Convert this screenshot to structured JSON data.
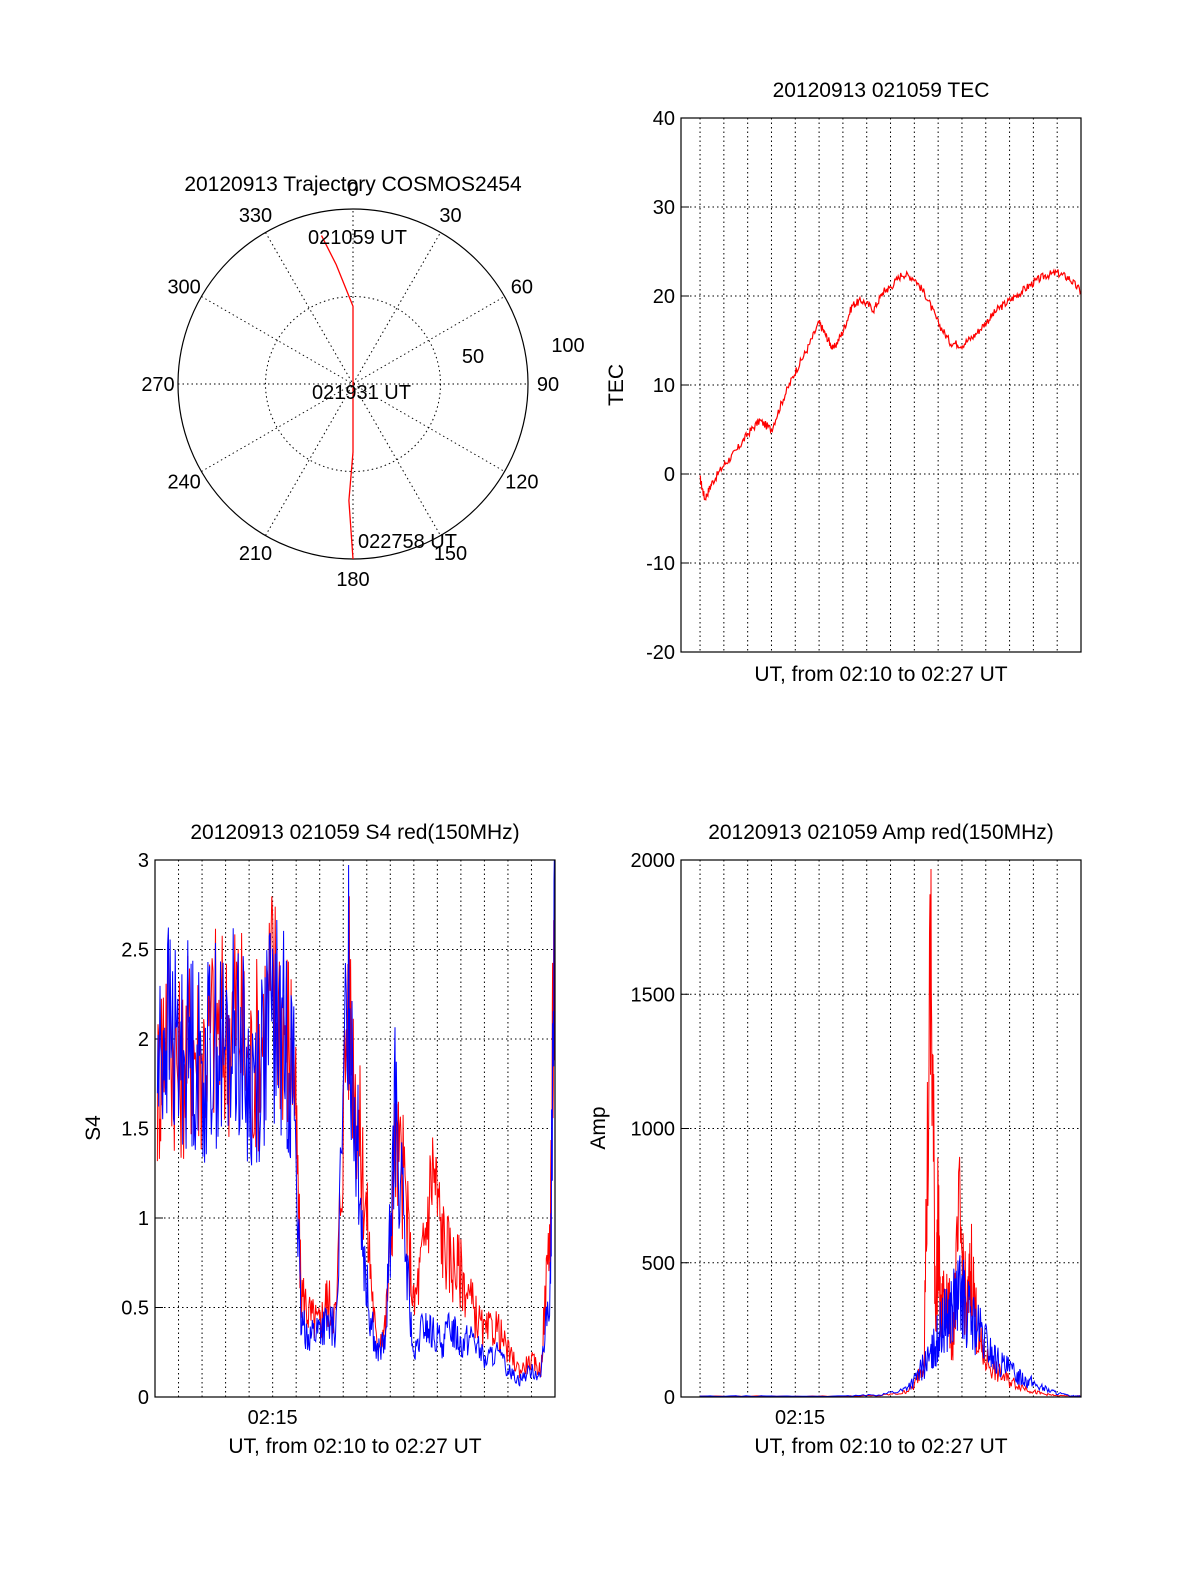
{
  "colors": {
    "red": "#ff0000",
    "blue": "#0000ff",
    "axis": "#000000",
    "background": "#ffffff"
  },
  "chart_data": [
    {
      "id": "polar",
      "type": "polar",
      "title": "20120913 Trajectory COSMOS2454",
      "angle_labels": [
        "0",
        "30",
        "60",
        "90",
        "120",
        "150",
        "180",
        "210",
        "240",
        "270",
        "300",
        "330"
      ],
      "radial_labels": [
        "50",
        "100"
      ],
      "grid": true,
      "series": [
        {
          "color": "red",
          "points": [
            {
              "az": 348,
              "el": 12
            },
            {
              "az": 352,
              "el": 28
            },
            {
              "az": 0,
              "el": 50
            },
            {
              "az": 20,
              "el": 90
            },
            {
              "az": 180,
              "el": 55
            },
            {
              "az": 182,
              "el": 30
            },
            {
              "az": 180,
              "el": 0
            }
          ]
        }
      ],
      "annotations": [
        "021059 UT",
        "021931 UT",
        "022758 UT"
      ]
    },
    {
      "id": "tec",
      "type": "line",
      "title": "20120913 021059 TEC",
      "xlabel": "UT, from 02:10 to 02:27 UT",
      "ylabel": "TEC",
      "xlim": [
        2.2,
        19.0
      ],
      "ylim": [
        -20,
        40
      ],
      "yticks": [
        "-20",
        "-10",
        "0",
        "10",
        "20",
        "30",
        "40"
      ],
      "grid": true,
      "series": [
        {
          "color": "red",
          "x": [
            3.0,
            3.2,
            3.5,
            4.0,
            4.5,
            5.0,
            5.5,
            6.0,
            6.5,
            7.0,
            7.5,
            8.0,
            8.3,
            8.6,
            9.0,
            9.4,
            9.8,
            10.3,
            10.7,
            11.0,
            11.5,
            12.0,
            12.5,
            13.0,
            13.5,
            14.0,
            14.5,
            15.0,
            15.5,
            16.0,
            16.5,
            17.0,
            17.5,
            18.0,
            18.5,
            19.0
          ],
          "y": [
            -0.5,
            -2.8,
            -1.0,
            1.0,
            2.5,
            4.5,
            6.0,
            5.0,
            8.5,
            11.5,
            14.0,
            17.0,
            15.5,
            14.0,
            16.0,
            19.0,
            19.5,
            18.5,
            20.5,
            21.0,
            22.5,
            22.0,
            20.0,
            17.0,
            14.8,
            14.5,
            15.5,
            17.0,
            18.5,
            19.5,
            20.5,
            21.5,
            22.3,
            22.6,
            22.0,
            20.5
          ]
        }
      ]
    },
    {
      "id": "s4",
      "type": "line",
      "title": "20120913 021059 S4 red(150MHz)",
      "xlabel": "UT, from 02:10 to 02:27 UT",
      "ylabel": "S4",
      "xlim": [
        0,
        17
      ],
      "ylim": [
        0,
        3
      ],
      "yticks": [
        "0",
        "0.5",
        "1",
        "1.5",
        "2",
        "2.5",
        "3"
      ],
      "xticks": [
        {
          "value": 5,
          "label": "02:15"
        }
      ],
      "grid": true,
      "series": [
        {
          "color": "red",
          "x": [
            0.1,
            0.5,
            1.0,
            1.5,
            2.0,
            2.5,
            3.0,
            3.5,
            4.0,
            4.5,
            5.0,
            5.5,
            5.9,
            6.2,
            6.6,
            7.0,
            7.3,
            7.7,
            8.2,
            8.6,
            9.0,
            9.4,
            9.8,
            10.2,
            10.6,
            11.0,
            11.4,
            11.8,
            12.2,
            12.6,
            13.0,
            13.5,
            14.0,
            14.5,
            15.0,
            15.5,
            16.0,
            16.4,
            16.8,
            17.0
          ],
          "y": [
            1.7,
            2.2,
            1.8,
            2.0,
            1.9,
            2.1,
            2.0,
            2.2,
            1.8,
            2.0,
            2.3,
            2.1,
            1.9,
            0.6,
            0.45,
            0.4,
            0.55,
            0.45,
            2.3,
            1.6,
            1.0,
            0.3,
            0.4,
            1.4,
            1.2,
            0.5,
            0.8,
            1.3,
            0.9,
            0.75,
            0.7,
            0.5,
            0.35,
            0.4,
            0.25,
            0.15,
            0.2,
            0.15,
            1.0,
            2.8
          ]
        },
        {
          "color": "blue",
          "x": [
            0.1,
            0.5,
            1.0,
            1.5,
            2.0,
            2.5,
            3.0,
            3.5,
            4.0,
            4.5,
            5.0,
            5.5,
            5.9,
            6.2,
            6.6,
            7.0,
            7.3,
            7.7,
            8.2,
            8.6,
            9.0,
            9.4,
            9.8,
            10.2,
            10.6,
            11.0,
            11.4,
            11.8,
            12.2,
            12.6,
            13.0,
            13.5,
            14.0,
            14.5,
            15.0,
            15.5,
            16.0,
            16.4,
            16.8,
            17.0
          ],
          "y": [
            1.8,
            2.1,
            1.9,
            2.0,
            1.8,
            2.0,
            1.9,
            2.1,
            1.7,
            1.9,
            2.1,
            2.0,
            1.8,
            0.4,
            0.35,
            0.38,
            0.4,
            0.38,
            2.4,
            1.4,
            0.6,
            0.25,
            0.3,
            1.6,
            0.9,
            0.2,
            0.4,
            0.35,
            0.3,
            0.4,
            0.3,
            0.35,
            0.2,
            0.25,
            0.15,
            0.1,
            0.15,
            0.12,
            0.6,
            2.9
          ]
        }
      ]
    },
    {
      "id": "amp",
      "type": "line",
      "title": "20120913 021059 Amp red(150MHz)",
      "xlabel": "UT, from 02:10 to 02:27 UT",
      "ylabel": "Amp",
      "xlim": [
        2.2,
        19.0
      ],
      "ylim": [
        0,
        2000
      ],
      "yticks": [
        "0",
        "500",
        "1000",
        "1500",
        "2000"
      ],
      "xticks": [
        {
          "value": 7.2,
          "label": "02:15"
        }
      ],
      "grid": true,
      "series": [
        {
          "color": "red",
          "x": [
            3.0,
            6.0,
            9.0,
            10.5,
            11.5,
            12.0,
            12.4,
            12.7,
            12.9,
            13.0,
            13.1,
            13.3,
            13.6,
            13.9,
            14.2,
            14.4,
            14.7,
            15.0,
            15.5,
            16.0,
            16.5,
            17.0,
            17.5,
            18.0,
            19.0
          ],
          "y": [
            3,
            3,
            3,
            5,
            15,
            40,
            150,
            1600,
            300,
            680,
            250,
            450,
            200,
            650,
            300,
            480,
            200,
            140,
            90,
            60,
            40,
            20,
            10,
            5,
            3
          ]
        },
        {
          "color": "blue",
          "x": [
            3.0,
            6.0,
            9.0,
            10.5,
            11.5,
            12.0,
            12.4,
            12.7,
            12.9,
            13.1,
            13.4,
            13.7,
            14.0,
            14.3,
            14.6,
            15.0,
            15.4,
            15.8,
            16.2,
            16.6,
            17.0,
            17.5,
            18.0,
            18.5,
            19.0
          ],
          "y": [
            3,
            3,
            3,
            8,
            25,
            60,
            120,
            150,
            200,
            250,
            300,
            350,
            380,
            300,
            260,
            200,
            140,
            110,
            90,
            70,
            50,
            30,
            15,
            5,
            3
          ]
        }
      ]
    }
  ]
}
